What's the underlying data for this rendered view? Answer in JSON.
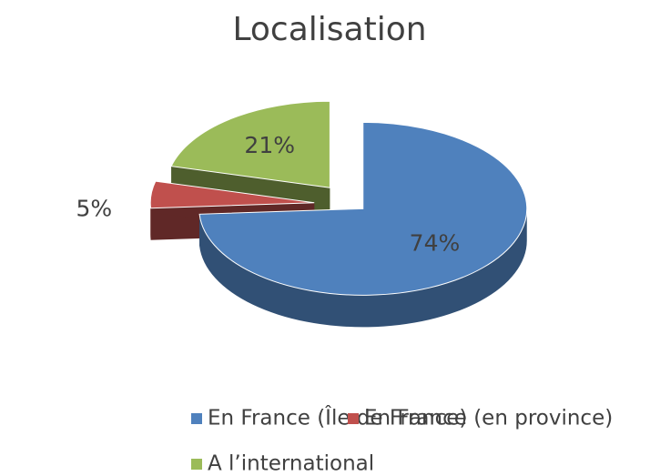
{
  "chart_data": {
    "type": "pie",
    "title": "Localisation",
    "categories": [
      "En France (Île de France)",
      "En France (en province)",
      "A l’international"
    ],
    "values": [
      74,
      5,
      21
    ],
    "value_labels": [
      "74%",
      "5%",
      "21%"
    ],
    "colors": [
      "#4f81bd",
      "#c0504d",
      "#9bbb59"
    ]
  }
}
